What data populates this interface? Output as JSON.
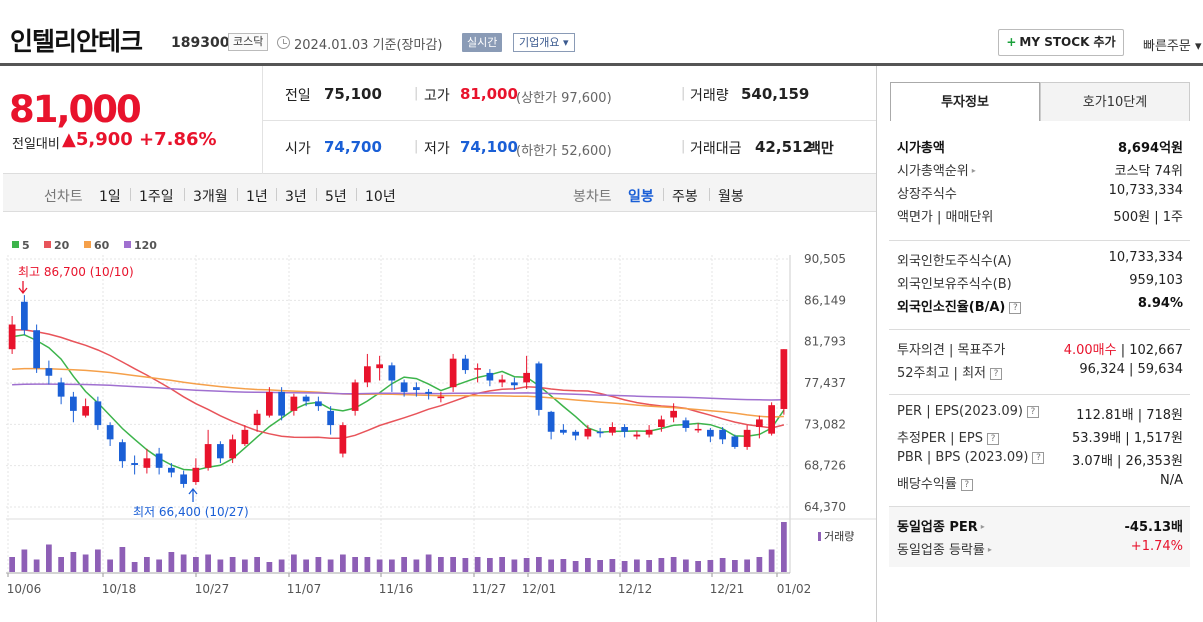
{
  "header": {
    "company_name": "인텔리안테크",
    "code": "189300",
    "market": "코스닥",
    "date_text": "2024.01.03  기준(장마감)",
    "realtime_label": "실시간",
    "company_info_label": "기업개요 ▾",
    "mystock_label": "MY STOCK 추가",
    "mystock_plus": "+",
    "quick_order_label": "빠른주문 ▾"
  },
  "price": {
    "current": "81,000",
    "change_label": "전일대비",
    "change_amount": "▲5,900",
    "change_pct": "+7.86%"
  },
  "quote": {
    "prev_close_label": "전일",
    "prev_close": "75,100",
    "high_label": "고가",
    "high": "81,000",
    "upper_limit": "(상한가 97,600)",
    "volume_label": "거래량",
    "volume": "540,159",
    "open_label": "시가",
    "open": "74,700",
    "low_label": "저가",
    "low": "74,100",
    "lower_limit": "(하한가 52,600)",
    "amount_label": "거래대금",
    "amount": "42,512",
    "amount_unit": "백만"
  },
  "period_tabs": {
    "line_label": "선차트",
    "line": [
      "1일",
      "1주일",
      "3개월",
      "1년",
      "3년",
      "5년",
      "10년"
    ],
    "candle_label": "봉차트",
    "candle": [
      "일봉",
      "주봉",
      "월봉"
    ],
    "active": "일봉"
  },
  "right_tabs": {
    "invest": "투자정보",
    "orderbook": "호가10단계"
  },
  "invest_info": {
    "group1": [
      {
        "label": "시가총액",
        "value": "8,694억원",
        "bold": true
      },
      {
        "label": "시가총액순위",
        "value": "코스닥 74위",
        "arrow": true
      },
      {
        "label": "상장주식수",
        "value": "10,733,334"
      },
      {
        "label": "액면가 | 매매단위",
        "value": "500원 | 1주"
      }
    ],
    "group2": [
      {
        "label": "외국인한도주식수(A)",
        "value": "10,733,334"
      },
      {
        "label": "외국인보유주식수(B)",
        "value": "959,103"
      },
      {
        "label": "외국인소진율(B/A)",
        "value": "8.94%",
        "bold": true,
        "help": true
      }
    ],
    "group3": [
      {
        "label": "투자의견 | 목표주가",
        "value_red": "4.00매수",
        "value": " | 102,667"
      },
      {
        "label": "52주최고 | 최저",
        "value": "96,324 | 59,634",
        "help": true
      }
    ],
    "group4": [
      {
        "label": "PER | EPS(2023.09)",
        "value": "112.81배 | 718원",
        "help": true
      },
      {
        "label": "추정PER | EPS",
        "value": "53.39배 | 1,517원",
        "help": true
      },
      {
        "label": "PBR | BPS (2023.09)",
        "value": "3.07배 | 26,353원",
        "help": true
      },
      {
        "label": "배당수익률",
        "value": "N/A",
        "help": true
      }
    ],
    "group5": [
      {
        "label": "동일업종 PER",
        "value": "-45.13배",
        "bold": true,
        "arrow": true
      },
      {
        "label": "동일업종 등락률",
        "value": "+1.74%",
        "red": true,
        "arrow": true
      }
    ],
    "help_glyph": "?",
    "arrow_glyph": "▸"
  },
  "chart_data": {
    "type": "candlestick",
    "legend": [
      {
        "name": "5",
        "color": "#3cb44b"
      },
      {
        "name": "20",
        "color": "#e8545a"
      },
      {
        "name": "60",
        "color": "#f5a04a"
      },
      {
        "name": "120",
        "color": "#a070d0"
      }
    ],
    "ylim": [
      64370,
      90505
    ],
    "y_ticks": [
      "90,505",
      "86,149",
      "81,793",
      "77,437",
      "73,082",
      "68,726",
      "64,370"
    ],
    "x_ticks": [
      "10/06",
      "10/18",
      "10/27",
      "11/07",
      "11/16",
      "11/27",
      "12/01",
      "12/12",
      "12/21",
      "01/02"
    ],
    "high_annotation": "최고 86,700 (10/10)",
    "low_annotation": "최저 66,400 (10/27)",
    "volume_label": "거래량",
    "up_color": "#e8132c",
    "down_color": "#1a5fd6",
    "candles": [
      [
        81000,
        83600,
        80500,
        84500
      ],
      [
        86000,
        83000,
        82500,
        86700
      ],
      [
        83000,
        79000,
        78500,
        83600
      ],
      [
        79000,
        78200,
        77300,
        79800
      ],
      [
        77500,
        76000,
        75200,
        78000
      ],
      [
        76000,
        74500,
        73300,
        76500
      ],
      [
        74000,
        75000,
        73800,
        75800
      ],
      [
        75500,
        73000,
        72500,
        76000
      ],
      [
        73000,
        71500,
        70800,
        73300
      ],
      [
        71200,
        69200,
        68500,
        71500
      ],
      [
        69000,
        68800,
        67800,
        69800
      ],
      [
        68500,
        69500,
        67900,
        70500
      ],
      [
        70000,
        68500,
        67800,
        70600
      ],
      [
        68500,
        68000,
        67500,
        69000
      ],
      [
        67800,
        66800,
        66400,
        68200
      ],
      [
        67000,
        68500,
        66700,
        69500
      ],
      [
        68500,
        71000,
        68200,
        72500
      ],
      [
        71000,
        69500,
        69000,
        71300
      ],
      [
        69500,
        71500,
        69000,
        72000
      ],
      [
        71000,
        72500,
        70800,
        73000
      ],
      [
        73000,
        74200,
        72300,
        74600
      ],
      [
        74000,
        76500,
        73800,
        77000
      ],
      [
        76500,
        74000,
        73500,
        77000
      ],
      [
        74500,
        76000,
        74000,
        76300
      ],
      [
        76000,
        75500,
        75000,
        76200
      ],
      [
        75500,
        75000,
        74500,
        76000
      ],
      [
        74500,
        73000,
        72000,
        75000
      ],
      [
        70000,
        73000,
        69600,
        73300
      ],
      [
        74500,
        77500,
        74000,
        77800
      ],
      [
        77500,
        79200,
        77000,
        80500
      ],
      [
        79000,
        79400,
        77700,
        80300
      ],
      [
        79300,
        77700,
        76500,
        79600
      ],
      [
        77500,
        76500,
        76000,
        77800
      ],
      [
        77000,
        76700,
        76000,
        77500
      ],
      [
        76500,
        76300,
        75700,
        76800
      ],
      [
        76000,
        76000,
        75400,
        76500
      ],
      [
        77000,
        80000,
        76500,
        80500
      ],
      [
        80000,
        78800,
        78400,
        80400
      ],
      [
        79000,
        79000,
        77500,
        79500
      ],
      [
        78500,
        77700,
        77100,
        78900
      ],
      [
        77500,
        77800,
        77000,
        78300
      ],
      [
        77500,
        77200,
        76700,
        78000
      ],
      [
        77500,
        78500,
        76800,
        80300
      ],
      [
        79500,
        74600,
        74000,
        79700
      ],
      [
        74400,
        72300,
        71500,
        74500
      ],
      [
        72500,
        72200,
        72000,
        73100
      ],
      [
        72300,
        71900,
        71400,
        72500
      ],
      [
        71800,
        72600,
        71500,
        73000
      ],
      [
        72300,
        72200,
        71700,
        72700
      ],
      [
        72200,
        72800,
        71900,
        73300
      ],
      [
        72800,
        72300,
        71700,
        73100
      ],
      [
        71800,
        72000,
        71500,
        72400
      ],
      [
        72000,
        72500,
        71700,
        73000
      ],
      [
        72800,
        73600,
        72300,
        74000
      ],
      [
        73800,
        74500,
        73300,
        75300
      ],
      [
        73500,
        72700,
        72300,
        73800
      ],
      [
        72500,
        72600,
        72200,
        73200
      ],
      [
        72500,
        71800,
        71200,
        72700
      ],
      [
        72500,
        71500,
        71000,
        72800
      ],
      [
        71800,
        70700,
        70500,
        72000
      ],
      [
        70700,
        72500,
        70400,
        73000
      ],
      [
        72800,
        73600,
        71600,
        74000
      ],
      [
        72100,
        75100,
        71900,
        75400
      ],
      [
        74700,
        81000,
        74100,
        81000
      ]
    ],
    "volumes": [
      30,
      45,
      25,
      55,
      30,
      40,
      35,
      45,
      25,
      50,
      20,
      30,
      25,
      40,
      35,
      30,
      35,
      25,
      30,
      25,
      30,
      20,
      25,
      35,
      25,
      30,
      25,
      35,
      30,
      30,
      25,
      25,
      30,
      25,
      35,
      30,
      30,
      28,
      30,
      28,
      30,
      25,
      28,
      30,
      25,
      26,
      22,
      28,
      24,
      26,
      22,
      25,
      24,
      28,
      30,
      25,
      22,
      24,
      28,
      24,
      25,
      30,
      45,
      100
    ]
  }
}
